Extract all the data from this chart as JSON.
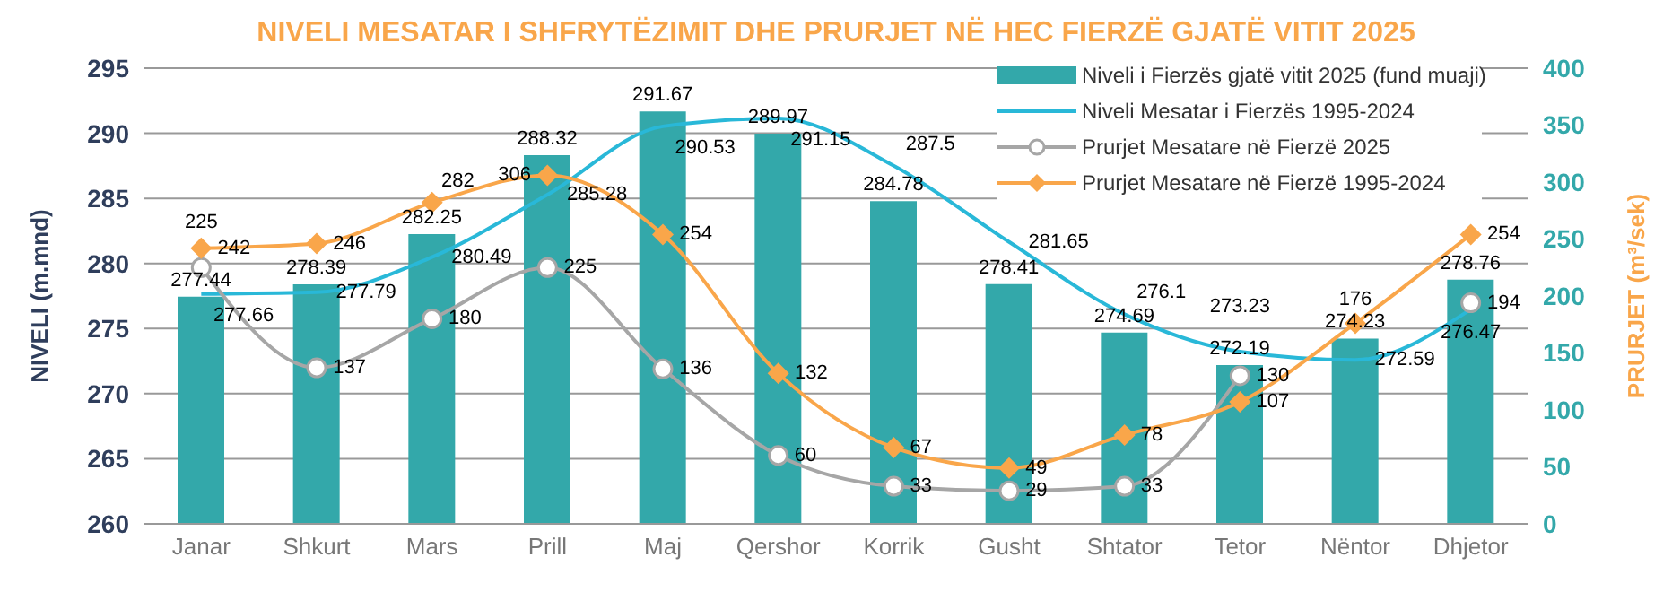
{
  "chart_data": {
    "type": "bar",
    "title": "NIVELI MESATAR I SHFRYTËZIMIT DHE PRURJET NË HEC FIERZË GJATË VITIT 2025",
    "ylabel": "NIVELI (m.mnd)",
    "y2label": "PRURJET (m³/sek)",
    "categories": [
      "Janar",
      "Shkurt",
      "Mars",
      "Prill",
      "Maj",
      "Qershor",
      "Korrik",
      "Gusht",
      "Shtator",
      "Tetor",
      "Nëntor",
      "Dhjetor"
    ],
    "series": [
      {
        "name": "Niveli i Fierzës gjatë vitit 2025 (fund muaji)",
        "color": "#33a8aa",
        "values": [
          277.44,
          278.39,
          282.25,
          288.32,
          291.67,
          289.97,
          284.78,
          278.41,
          274.69,
          272.19,
          274.23,
          278.76
        ]
      },
      {
        "name": "Niveli Mesatar i Fierzës 1995-2024",
        "type": "line",
        "color": "#29b8d8",
        "marker": "none",
        "values": [
          277.66,
          277.79,
          280.49,
          285.28,
          290.53,
          291.15,
          287.5,
          281.65,
          276.1,
          273.23,
          272.59,
          276.47
        ]
      },
      {
        "name": "Prurjet Mesatare në Fierzë 2025",
        "type": "line",
        "axis": "y2",
        "color": "#a6a6a6",
        "marker": "circle",
        "values": [
          225,
          137,
          180,
          225,
          136,
          60,
          33,
          29,
          33,
          130,
          null,
          194
        ]
      },
      {
        "name": "Prurjet Mesatare në Fierzë 1995-2024",
        "type": "line",
        "axis": "y2",
        "color": "#f9a64a",
        "marker": "diamond",
        "values": [
          242,
          246,
          282,
          306,
          254,
          132,
          67,
          49,
          78,
          107,
          176,
          254
        ]
      }
    ],
    "ylim": [
      260,
      295
    ],
    "yticks": [
      260,
      265,
      270,
      275,
      280,
      285,
      290,
      295
    ],
    "y2lim": [
      0,
      400
    ],
    "y2ticks": [
      0,
      50,
      100,
      150,
      200,
      250,
      300,
      350,
      400
    ],
    "grid": "y",
    "legend": "top right",
    "data_labels": true
  }
}
